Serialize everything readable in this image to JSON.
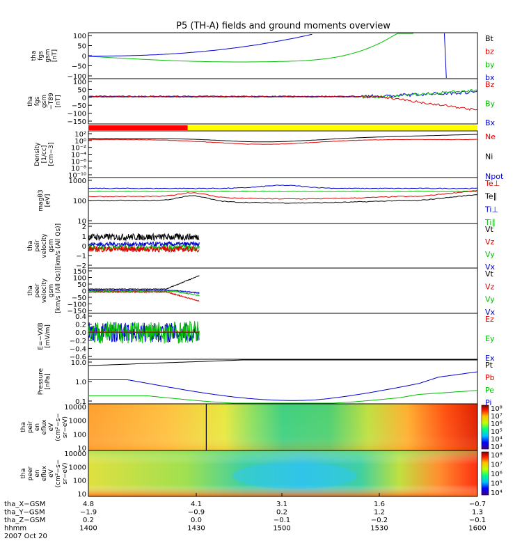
{
  "title": "P5 (TH-A) fields and ground moments overview",
  "colors": {
    "black": "#000000",
    "red": "#e00000",
    "green": "#00c000",
    "blue": "#0000d0",
    "yellow": "#ffff00",
    "bar_red": "#ff0000"
  },
  "chart_data": [
    {
      "type": "line",
      "panel": "fgs",
      "ylabel": [
        "tha",
        "fgs",
        "gsm",
        "[nT]"
      ],
      "ylim": [
        -100,
        100
      ],
      "yticks": [
        "100",
        "50",
        "0",
        "−50",
        "−100"
      ],
      "legend": [
        {
          "label": "Bt",
          "color": "black"
        },
        {
          "label": "bz",
          "color": "red"
        },
        {
          "label": "by",
          "color": "green"
        },
        {
          "label": "bx",
          "color": "blue"
        }
      ]
    },
    {
      "type": "line",
      "panel": "fgs_hf",
      "ylabel": [
        "tha",
        "fgs",
        "gsm",
        "−T89",
        "[nT]"
      ],
      "ylim": [
        -160,
        100
      ],
      "yticks": [
        "100",
        "50",
        "0",
        "−50",
        "−100",
        "−150"
      ],
      "legend": [
        {
          "label": "Bz",
          "color": "red"
        },
        {
          "label": "By",
          "color": "green"
        },
        {
          "label": "Bx",
          "color": "blue"
        }
      ]
    },
    {
      "type": "line",
      "panel": "density",
      "log": true,
      "ylabel": [
        "Density",
        "[1/cc]",
        "[cm−3]"
      ],
      "yticks": [
        "10²",
        "10⁰",
        "10⁻²",
        "10⁻⁴",
        "10⁻⁶",
        "10⁻⁸",
        "10⁻¹⁰"
      ],
      "legend": [
        {
          "label": "Ne",
          "color": "red"
        },
        {
          "label": "Ni",
          "color": "black"
        },
        {
          "label": "Npot",
          "color": "blue"
        }
      ]
    },
    {
      "type": "line",
      "panel": "temperature",
      "log": true,
      "ylabel": [
        "magθ3",
        "[eV]"
      ],
      "yticks": [
        "1000",
        "100",
        "10"
      ],
      "legend": [
        {
          "label": "Te⊥",
          "color": "red"
        },
        {
          "label": "Te∥",
          "color": "black"
        },
        {
          "label": "Ti⊥",
          "color": "blue"
        },
        {
          "label": "Ti∥",
          "color": "green"
        }
      ]
    },
    {
      "type": "line",
      "panel": "peir_velocity",
      "ylabel": [
        "tha",
        "peir",
        "velocity",
        "gsm",
        "[km/s (All Qs)]"
      ],
      "ylim": [
        -2,
        2
      ],
      "yticks": [
        "2",
        "1",
        "0",
        "−1",
        "−2"
      ],
      "legend": [
        {
          "label": "Vt",
          "color": "black"
        },
        {
          "label": "Vz",
          "color": "red"
        },
        {
          "label": "Vy",
          "color": "green"
        },
        {
          "label": "Vx",
          "color": "blue"
        }
      ]
    },
    {
      "type": "line",
      "panel": "peer_velocity",
      "ylabel": [
        "tha",
        "peer",
        "velocity",
        "gsm",
        "[km/s (All Qs)]"
      ],
      "ylim": [
        -150,
        150
      ],
      "yticks": [
        "150",
        "100",
        "50",
        "0",
        "−50",
        "−100",
        "−150"
      ],
      "legend": [
        {
          "label": "Vt",
          "color": "black"
        },
        {
          "label": "Vz",
          "color": "red"
        },
        {
          "label": "Vy",
          "color": "green"
        },
        {
          "label": "Vx",
          "color": "blue"
        }
      ]
    },
    {
      "type": "line",
      "panel": "efield",
      "ylabel": [
        "E=−VXB",
        "[mV/m]"
      ],
      "ylim": [
        -0.6,
        0.4
      ],
      "yticks": [
        "0.4",
        "0.2",
        "0.0",
        "−0.2",
        "−0.4",
        "−0.6"
      ],
      "legend": [
        {
          "label": "Ez",
          "color": "red"
        },
        {
          "label": "Ey",
          "color": "green"
        },
        {
          "label": "Ex",
          "color": "blue"
        }
      ]
    },
    {
      "type": "line",
      "panel": "pressure",
      "log": true,
      "ylabel": [
        "Pressure",
        "[nPa]"
      ],
      "yticks": [
        "10.0",
        "1.0",
        "0.1"
      ],
      "legend": [
        {
          "label": "Pt",
          "color": "black"
        },
        {
          "label": "Pb",
          "color": "red"
        },
        {
          "label": "Pe",
          "color": "green"
        },
        {
          "label": "Pi",
          "color": "blue"
        }
      ]
    },
    {
      "type": "heatmap",
      "panel": "peir_spectrogram",
      "ylabel": [
        "tha",
        "peir",
        "en",
        "eflux",
        "eV",
        "(cm²−s−",
        "sr−eV)"
      ],
      "yticks": [
        "10000",
        "1000",
        "100",
        "10"
      ],
      "colorbar": [
        "10⁸",
        "10⁷",
        "10⁶",
        "10⁵",
        "10⁴",
        "10³"
      ]
    },
    {
      "type": "heatmap",
      "panel": "peer_spectrogram",
      "ylabel": [
        "tha",
        "peer",
        "en",
        "eflux",
        "eV",
        "(cm²−s−",
        "sr−eV)"
      ],
      "yticks": [
        "10000",
        "1000",
        "100",
        "10"
      ],
      "colorbar": [
        "10⁸",
        "10⁷",
        "10⁶",
        "10⁵",
        "10⁴"
      ]
    }
  ],
  "xaxis": {
    "rows": [
      {
        "label": "tha_X−GSM",
        "values": [
          "4.8",
          "4.1",
          "3.1",
          "1.6",
          "−0.7"
        ]
      },
      {
        "label": "tha_Y−GSM",
        "values": [
          "−1.9",
          "−0.9",
          "0.2",
          "1.2",
          "1.3"
        ]
      },
      {
        "label": "tha_Z−GSM",
        "values": [
          "0.2",
          "0.0",
          "−0.1",
          "−0.2",
          "−0.1"
        ]
      },
      {
        "label": "hhmm",
        "values": [
          "1400",
          "1430",
          "1500",
          "1530",
          "1600"
        ]
      }
    ],
    "date": "2007 Oct 20"
  }
}
